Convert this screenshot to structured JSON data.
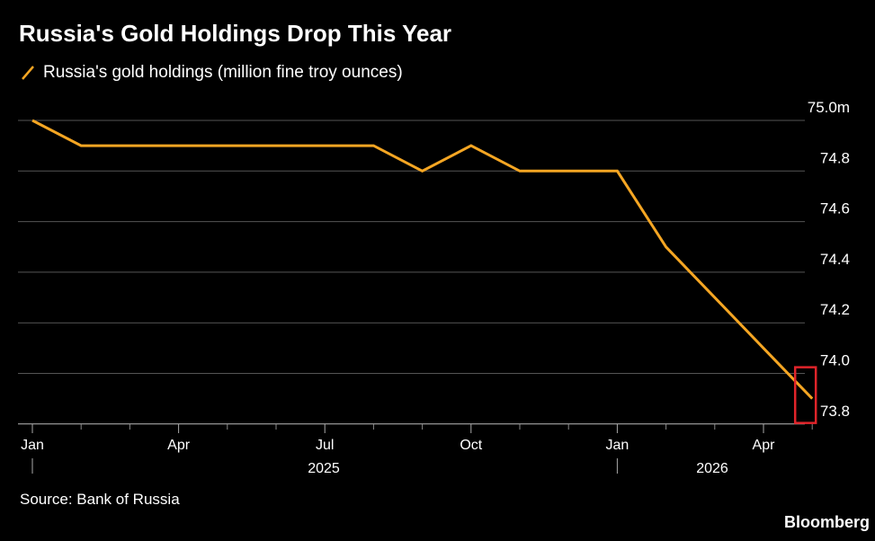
{
  "title": "Russia's Gold Holdings Drop This Year",
  "legend_label": "Russia's gold holdings (million fine troy ounces)",
  "source": "Source: Bank of Russia",
  "brand": "Bloomberg",
  "colors": {
    "background": "#000000",
    "line": "#f5a623",
    "grid": "#555555",
    "highlight": "#e0242a",
    "text": "#ffffff"
  },
  "chart_data": {
    "type": "line",
    "title": "Russia's Gold Holdings Drop This Year",
    "series": [
      {
        "name": "Russia's gold holdings (million fine troy ounces)",
        "x": [
          "2025-01",
          "2025-02",
          "2025-03",
          "2025-04",
          "2025-05",
          "2025-06",
          "2025-07",
          "2025-08",
          "2025-09",
          "2025-10",
          "2025-11",
          "2025-12",
          "2026-01",
          "2026-02",
          "2026-03",
          "2026-04",
          "2026-05"
        ],
        "values": [
          75.0,
          74.9,
          74.9,
          74.9,
          74.9,
          74.9,
          74.9,
          74.9,
          74.8,
          74.9,
          74.8,
          74.8,
          74.8,
          74.5,
          74.3,
          74.1,
          73.9
        ]
      }
    ],
    "x_ticks": [
      "Jan",
      "Apr",
      "Jul",
      "Oct",
      "Jan",
      "Apr"
    ],
    "x_tick_dates": [
      "2025-01",
      "2025-04",
      "2025-07",
      "2025-10",
      "2026-01",
      "2026-04"
    ],
    "x_minor_dates": [
      "2025-02",
      "2025-03",
      "2025-05",
      "2025-06",
      "2025-08",
      "2025-09",
      "2025-11",
      "2025-12",
      "2026-02",
      "2026-03",
      "2026-05"
    ],
    "year_labels": [
      "2025",
      "2026"
    ],
    "y_ticks": [
      "75.0m",
      "74.8",
      "74.6",
      "74.4",
      "74.2",
      "74.0",
      "73.8"
    ],
    "y_tick_values": [
      75.0,
      74.8,
      74.6,
      74.4,
      74.2,
      74.0,
      73.8
    ],
    "ylim": [
      73.75,
      75.0
    ],
    "grid": true,
    "highlight_last_point": true
  }
}
